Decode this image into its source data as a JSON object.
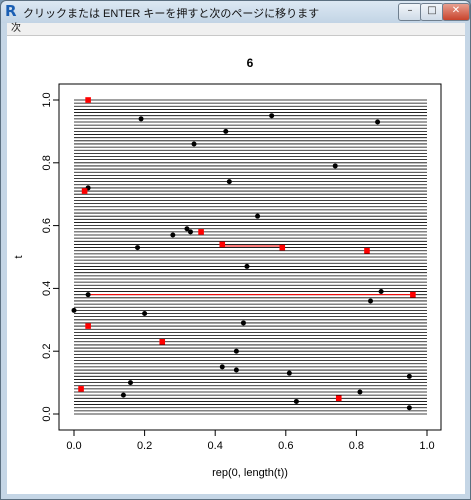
{
  "window": {
    "app_icon": "R",
    "title": "クリックまたは ENTER キーを押すと次のページに移ります",
    "controls": {
      "minimize": "–",
      "maximize": "□",
      "close": "✕"
    }
  },
  "menubar": {
    "items": [
      {
        "label": "次"
      }
    ]
  },
  "chart_data": {
    "type": "scatter",
    "title": "6",
    "xlabel": "rep(0, length(t))",
    "ylabel": "t",
    "xlim": [
      0,
      1
    ],
    "ylim": [
      0,
      1
    ],
    "xticks": [
      "0.0",
      "0.2",
      "0.4",
      "0.6",
      "0.8",
      "1.0"
    ],
    "yticks": [
      "0.0",
      "0.2",
      "0.4",
      "0.6",
      "0.8",
      "1.0"
    ],
    "grid": false,
    "hlines": [
      0.0,
      0.01,
      0.02,
      0.03,
      0.04,
      0.05,
      0.06,
      0.07,
      0.08,
      0.09,
      0.1,
      0.11,
      0.12,
      0.13,
      0.14,
      0.15,
      0.16,
      0.17,
      0.18,
      0.19,
      0.2,
      0.21,
      0.22,
      0.23,
      0.24,
      0.25,
      0.26,
      0.27,
      0.28,
      0.29,
      0.3,
      0.31,
      0.32,
      0.33,
      0.34,
      0.35,
      0.36,
      0.37,
      0.38,
      0.39,
      0.4,
      0.41,
      0.42,
      0.43,
      0.44,
      0.45,
      0.46,
      0.47,
      0.48,
      0.49,
      0.5,
      0.51,
      0.52,
      0.53,
      0.54,
      0.55,
      0.56,
      0.57,
      0.58,
      0.59,
      0.6,
      0.61,
      0.62,
      0.63,
      0.64,
      0.65,
      0.66,
      0.67,
      0.68,
      0.69,
      0.7,
      0.71,
      0.72,
      0.73,
      0.74,
      0.75,
      0.76,
      0.77,
      0.78,
      0.79,
      0.8,
      0.81,
      0.82,
      0.83,
      0.84,
      0.85,
      0.86,
      0.87,
      0.88,
      0.89,
      0.9,
      0.91,
      0.92,
      0.93,
      0.94,
      0.95,
      0.96,
      0.97,
      0.98,
      0.99,
      1.0
    ],
    "hline_range": [
      0,
      1
    ],
    "hline_color": "#000000",
    "red_lines": [
      {
        "y": 0.535,
        "x0": 0.42,
        "x1": 0.59
      },
      {
        "y": 0.38,
        "x0": 0.04,
        "x1": 0.96
      }
    ],
    "red_line_color": "#ff0000",
    "series": [
      {
        "marker": "circle",
        "color": "#000000",
        "points": [
          {
            "x": 0.19,
            "y": 0.94
          },
          {
            "x": 0.43,
            "y": 0.9
          },
          {
            "x": 0.56,
            "y": 0.95
          },
          {
            "x": 0.86,
            "y": 0.93
          },
          {
            "x": 0.34,
            "y": 0.86
          },
          {
            "x": 0.74,
            "y": 0.79
          },
          {
            "x": 0.44,
            "y": 0.74
          },
          {
            "x": 0.04,
            "y": 0.72
          },
          {
            "x": 0.52,
            "y": 0.63
          },
          {
            "x": 0.32,
            "y": 0.59
          },
          {
            "x": 0.33,
            "y": 0.58
          },
          {
            "x": 0.28,
            "y": 0.57
          },
          {
            "x": 0.18,
            "y": 0.53
          },
          {
            "x": 0.49,
            "y": 0.47
          },
          {
            "x": 0.87,
            "y": 0.39
          },
          {
            "x": 0.04,
            "y": 0.38
          },
          {
            "x": 0.84,
            "y": 0.36
          },
          {
            "x": 0.0,
            "y": 0.33
          },
          {
            "x": 0.2,
            "y": 0.32
          },
          {
            "x": 0.48,
            "y": 0.29
          },
          {
            "x": 0.46,
            "y": 0.2
          },
          {
            "x": 0.42,
            "y": 0.15
          },
          {
            "x": 0.46,
            "y": 0.14
          },
          {
            "x": 0.61,
            "y": 0.13
          },
          {
            "x": 0.95,
            "y": 0.12
          },
          {
            "x": 0.16,
            "y": 0.1
          },
          {
            "x": 0.81,
            "y": 0.07
          },
          {
            "x": 0.14,
            "y": 0.06
          },
          {
            "x": 0.63,
            "y": 0.04
          },
          {
            "x": 0.95,
            "y": 0.02
          }
        ]
      },
      {
        "marker": "square",
        "color": "#ff0000",
        "points": [
          {
            "x": 0.04,
            "y": 1.0
          },
          {
            "x": 0.03,
            "y": 0.71
          },
          {
            "x": 0.36,
            "y": 0.58
          },
          {
            "x": 0.42,
            "y": 0.54
          },
          {
            "x": 0.59,
            "y": 0.53
          },
          {
            "x": 0.83,
            "y": 0.52
          },
          {
            "x": 0.96,
            "y": 0.38
          },
          {
            "x": 0.04,
            "y": 0.28
          },
          {
            "x": 0.25,
            "y": 0.23
          },
          {
            "x": 0.02,
            "y": 0.08
          },
          {
            "x": 0.75,
            "y": 0.05
          }
        ]
      }
    ]
  }
}
